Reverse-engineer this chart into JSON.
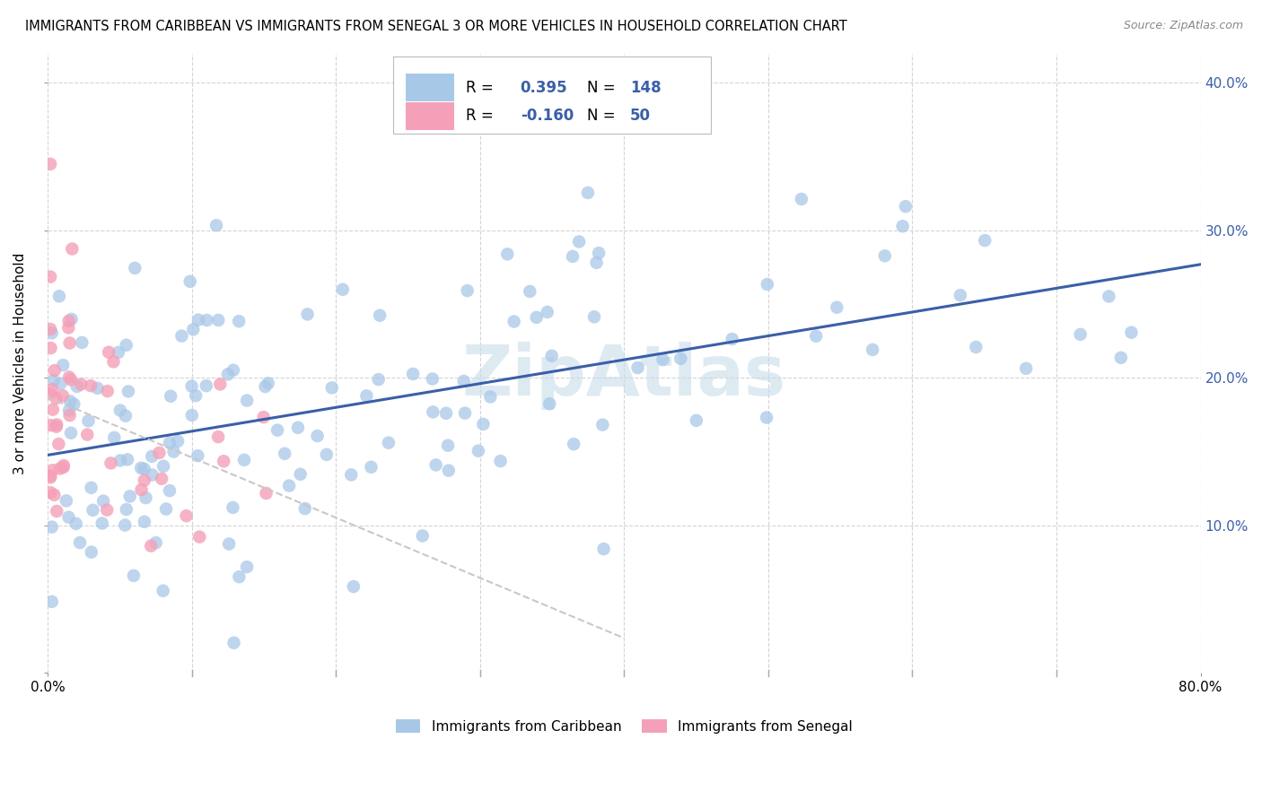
{
  "title": "IMMIGRANTS FROM CARIBBEAN VS IMMIGRANTS FROM SENEGAL 3 OR MORE VEHICLES IN HOUSEHOLD CORRELATION CHART",
  "source": "Source: ZipAtlas.com",
  "ylabel": "3 or more Vehicles in Household",
  "xlim": [
    0.0,
    0.8
  ],
  "ylim": [
    0.0,
    0.42
  ],
  "caribbean_color": "#a8c8e8",
  "senegal_color": "#f4a0b8",
  "caribbean_R": 0.395,
  "caribbean_N": 148,
  "senegal_R": -0.16,
  "senegal_N": 50,
  "trend_caribbean_color": "#3a5fa8",
  "trend_senegal_color": "#c8c8c8",
  "watermark": "ZipAtlas",
  "watermark_color": "#c8dcea",
  "legend_label_caribbean": "Immigrants from Caribbean",
  "legend_label_senegal": "Immigrants from Senegal"
}
